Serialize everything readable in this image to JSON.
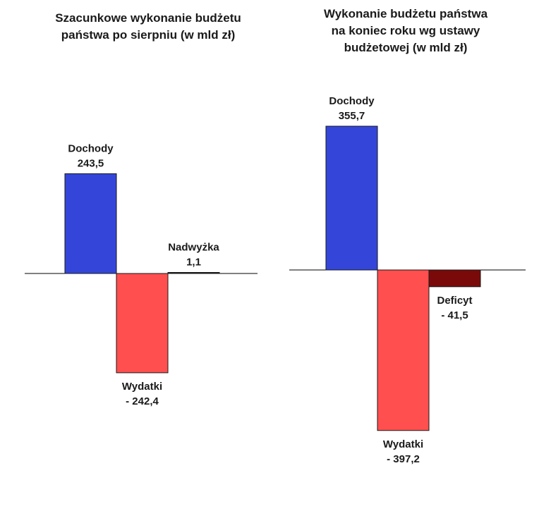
{
  "chart_data": [
    {
      "type": "bar",
      "title": "Szacunkowe wykonanie budżetu\npaństwa po sierpniu (w mld zł)",
      "categories": [
        "Dochody",
        "Wydatki",
        "Nadwyżka"
      ],
      "values": [
        243.5,
        -242.4,
        1.1
      ],
      "value_labels": [
        "243,5",
        "- 242,4",
        "1,1"
      ],
      "colors": [
        "#3446d9",
        "#ff4f4f",
        "#1a1a1a"
      ],
      "grid": false,
      "legend": "none"
    },
    {
      "type": "bar",
      "title": "Wykonanie budżetu państwa\nna koniec roku wg ustawy\nbudżetowej (w mld zł)",
      "categories": [
        "Dochody",
        "Wydatki",
        "Deficyt"
      ],
      "values": [
        355.7,
        -397.2,
        -41.5
      ],
      "value_labels": [
        "355,7",
        "- 397,2",
        "- 41,5"
      ],
      "colors": [
        "#3446d9",
        "#ff4f4f",
        "#7a0a0a"
      ],
      "grid": false,
      "legend": "none"
    }
  ]
}
